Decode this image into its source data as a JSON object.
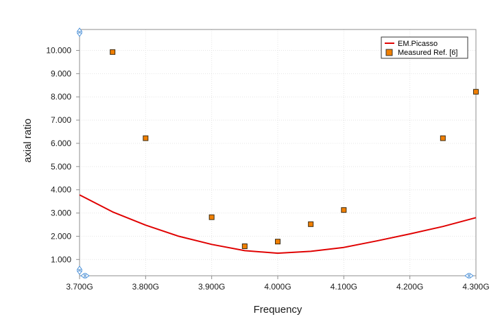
{
  "chart_data": {
    "type": "line",
    "xlabel": "Frequency",
    "ylabel": "axial ratio",
    "xlim": [
      3.7,
      4.3
    ],
    "ylim": [
      0.3,
      10.9
    ],
    "x_ticks": [
      3.7,
      3.8,
      3.9,
      4.0,
      4.1,
      4.2,
      4.3
    ],
    "x_tick_labels": [
      "3.700G",
      "3.800G",
      "3.900G",
      "4.000G",
      "4.100G",
      "4.200G",
      "4.300G"
    ],
    "y_ticks": [
      1,
      2,
      3,
      4,
      5,
      6,
      7,
      8,
      9,
      10
    ],
    "y_tick_labels": [
      "1.000",
      "2.000",
      "3.000",
      "4.000",
      "5.000",
      "6.000",
      "7.000",
      "8.000",
      "9.000",
      "10.000"
    ],
    "grid": true,
    "legend_position": "top-right",
    "series": [
      {
        "name": "EM.Picasso",
        "kind": "line",
        "color": "#e00000",
        "x": [
          3.7,
          3.75,
          3.8,
          3.85,
          3.9,
          3.95,
          4.0,
          4.05,
          4.1,
          4.15,
          4.2,
          4.25,
          4.3
        ],
        "y": [
          3.78,
          3.05,
          2.48,
          2.0,
          1.65,
          1.38,
          1.27,
          1.35,
          1.52,
          1.8,
          2.1,
          2.42,
          2.8
        ]
      },
      {
        "name": "Measured Ref. [6]",
        "kind": "scatter",
        "color": "#f07f00",
        "x": [
          3.75,
          3.8,
          3.9,
          3.95,
          4.0,
          4.05,
          4.1,
          4.25,
          4.3
        ],
        "y": [
          9.93,
          6.22,
          2.82,
          1.57,
          1.77,
          2.52,
          3.13,
          6.22,
          8.22
        ]
      }
    ]
  }
}
